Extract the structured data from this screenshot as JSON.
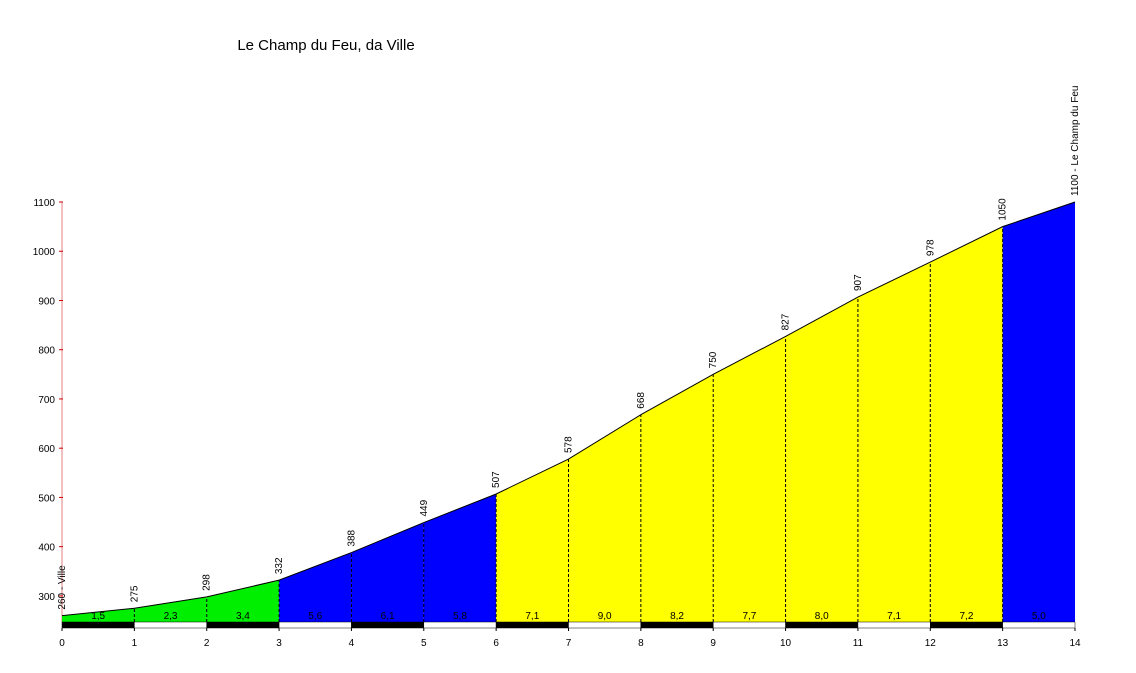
{
  "chart_data": {
    "type": "profile",
    "title": "Le Champ du Feu, da Ville",
    "x": [
      0,
      1,
      2,
      3,
      4,
      5,
      6,
      7,
      8,
      9,
      10,
      11,
      12,
      13,
      14
    ],
    "values": [
      260,
      275,
      298,
      332,
      388,
      449,
      507,
      578,
      668,
      750,
      827,
      907,
      978,
      1050,
      1100
    ],
    "value_labels": [
      "260 - Ville",
      "275",
      "298",
      "332",
      "388",
      "449",
      "507",
      "578",
      "668",
      "750",
      "827",
      "907",
      "978",
      "1050",
      "1100 - Le Champ du Feu"
    ],
    "gradients": {
      "values": [
        1.5,
        2.3,
        3.4,
        5.6,
        6.1,
        5.8,
        7.1,
        9.0,
        8.2,
        7.7,
        8.0,
        7.1,
        7.2,
        5.0
      ],
      "value_labels": [
        "1,5",
        "2,3",
        "3,4",
        "5,6",
        "6,1",
        "5,8",
        "7,1",
        "9,0",
        "8,2",
        "7,7",
        "8,0",
        "7,1",
        "7,2",
        "5,0"
      ],
      "colors": [
        "#00ee00",
        "#00ee00",
        "#00ee00",
        "#0000ff",
        "#0000ff",
        "#0000ff",
        "#ffff00",
        "#ffff00",
        "#ffff00",
        "#ffff00",
        "#ffff00",
        "#ffff00",
        "#ffff00",
        "#0000ff"
      ]
    },
    "xlim": [
      0,
      14
    ],
    "xticks": [
      0,
      1,
      2,
      3,
      4,
      5,
      6,
      7,
      8,
      9,
      10,
      11,
      12,
      13,
      14
    ],
    "ylim": [
      247,
      1100
    ],
    "yticks": [
      300,
      400,
      500,
      600,
      700,
      800,
      900,
      1000,
      1100
    ]
  }
}
